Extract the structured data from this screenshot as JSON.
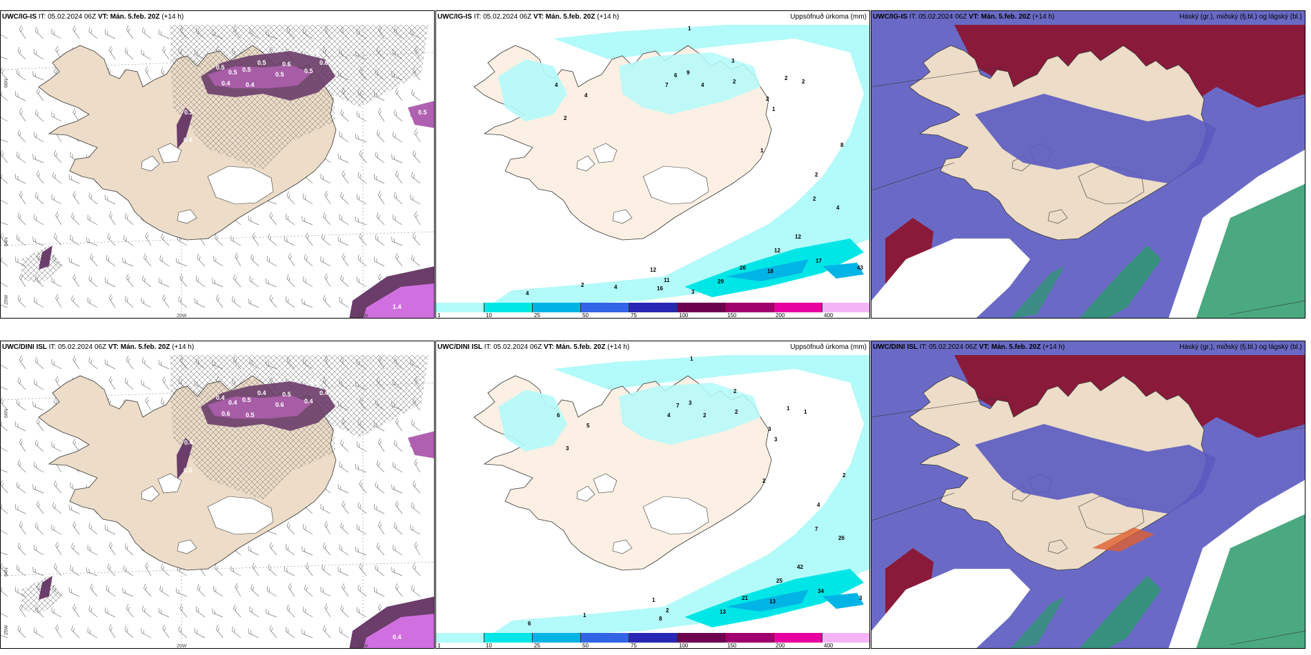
{
  "top_row": {
    "wind": {
      "model": "UWC/IG-IS",
      "it_label": "IT: 05.02.2024 06Z",
      "vt_label": "VT: Mán. 5.feb. 20Z",
      "lead": "(+14 h)",
      "gridlabels": {
        "lat_top": "66N",
        "lat_mid": "64N",
        "lon_left": "25W",
        "lon_mid": "20W",
        "lon_right": "15W"
      },
      "values": [
        "0.5",
        "0.5",
        "0.5",
        "0.4",
        "0.5",
        "0.6",
        "0.5",
        "0.4",
        "0.5",
        "0.5",
        "0.6",
        "0.3",
        "0.4",
        "1.4",
        "0.5"
      ]
    },
    "precip": {
      "model": "UWC/IG-IS",
      "it_label": "IT: 05.02.2024 06Z",
      "vt_label": "VT: Mán. 5.feb. 20Z",
      "lead": "(+14 h)",
      "right_title": "Uppsöfnuð úrkoma (mm)",
      "values": [
        "1",
        "4",
        "4",
        "2",
        "6",
        "7",
        "9",
        "4",
        "3",
        "2",
        "2",
        "2",
        "2",
        "1",
        "1",
        "8",
        "2",
        "2",
        "4",
        "12",
        "12",
        "17",
        "26",
        "18",
        "29",
        "43",
        "16",
        "11",
        "12",
        "4",
        "2",
        "4",
        "3"
      ]
    },
    "cloud": {
      "model": "UWC/IG-IS",
      "it_label": "IT: 05.02.2024 06Z",
      "vt_label": "VT: Mán. 5.feb. 20Z",
      "lead": "(+14 h)",
      "right_title": "Háský (gr.), miðský (fj.bl.) og lágský (bl.)"
    }
  },
  "bottom_row": {
    "wind": {
      "model": "UWC/DINI ISL",
      "it_label": "IT: 05.02.2024 06Z",
      "vt_label": "VT: Mán. 5.feb. 20Z",
      "lead": "(+14 h)",
      "gridlabels": {
        "lat_top": "66N",
        "lat_mid": "64N",
        "lon_left": "25W",
        "lon_mid": "20W",
        "lon_right": "15W"
      },
      "values": [
        "0.4",
        "0.4",
        "0.5",
        "0.6",
        "0.4",
        "0.5",
        "0.4",
        "0.5",
        "0.6",
        "0.3",
        "0.4",
        "0.4",
        "0.5",
        "0.4"
      ]
    },
    "precip": {
      "model": "UWC/DINI ISL",
      "it_label": "IT: 05.02.2024 06Z",
      "vt_label": "VT: Mán. 5.feb. 20Z",
      "lead": "(+14 h)",
      "right_title": "Uppsöfnuð úrkoma (mm)",
      "values": [
        "1",
        "6",
        "5",
        "3",
        "7",
        "4",
        "3",
        "2",
        "2",
        "2",
        "3",
        "1",
        "1",
        "2",
        "3",
        "2",
        "4",
        "7",
        "26",
        "42",
        "25",
        "34",
        "21",
        "13",
        "13",
        "3",
        "8",
        "2",
        "1",
        "6",
        "1"
      ]
    },
    "cloud": {
      "model": "UWC/DINI ISL",
      "it_label": "IT: 05.02.2024 06Z",
      "vt_label": "VT: Mán. 5.feb. 20Z",
      "lead": "(+14 h)",
      "right_title": "Háský (gr.), miðský (fj.bl.) og lágský (bl.)"
    }
  },
  "colorbar": {
    "labels": [
      "1",
      "10",
      "25",
      "50",
      "75",
      "100",
      "150",
      "200",
      "400"
    ],
    "colors": [
      "#b3fafa",
      "#00e6e6",
      "#00b4e6",
      "#3264e6",
      "#2828b4",
      "#6e0050",
      "#a0006e",
      "#e600a0",
      "#f5b4f5"
    ]
  },
  "colors": {
    "land": "#ecdcc8",
    "land_precip": "#fbf0e3",
    "glacier": "#ffffff",
    "sea": "#ffffff",
    "ice_purple": "#6b3d6a",
    "ice_purple_light": "#b060b0",
    "cloud_high": "#8a1a3a",
    "cloud_mid": "#5a5ac0",
    "cloud_low": "#2a9a6a"
  }
}
